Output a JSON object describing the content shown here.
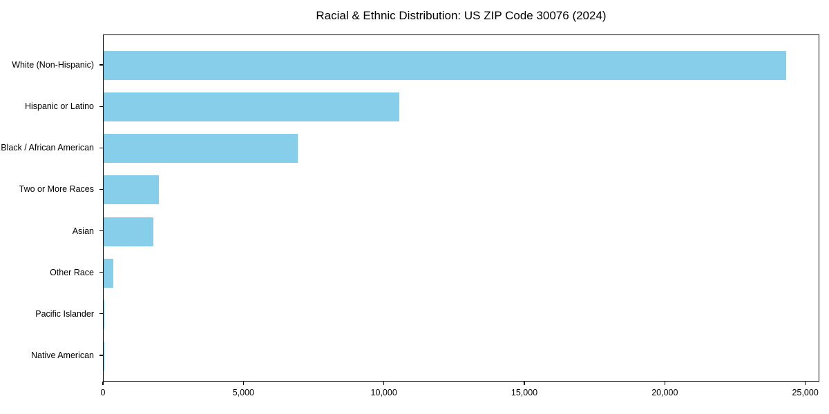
{
  "page": {
    "title": "Racial & Ethnic Distribution: US ZIP Code 30076 (2024)"
  },
  "chart_data": {
    "type": "bar",
    "orientation": "horizontal",
    "title": "Racial & Ethnic Distribution: US ZIP Code 30076 (2024)",
    "categories": [
      "White (Non-Hispanic)",
      "Hispanic or Latino",
      "Black / African American",
      "Two or More Races",
      "Asian",
      "Other Race",
      "Pacific Islander",
      "Native American"
    ],
    "values": [
      24300,
      10520,
      6900,
      1960,
      1780,
      350,
      30,
      25
    ],
    "bar_color": "#87CEEB",
    "xlabel": "",
    "ylabel": "",
    "xlim": [
      0,
      25500
    ],
    "xticks": [
      0,
      5000,
      10000,
      15000,
      20000,
      25000
    ],
    "xtick_labels": [
      "0",
      "5,000",
      "10,000",
      "15,000",
      "20,000",
      "25,000"
    ],
    "grid": false,
    "legend": null,
    "frame": "full-box"
  }
}
